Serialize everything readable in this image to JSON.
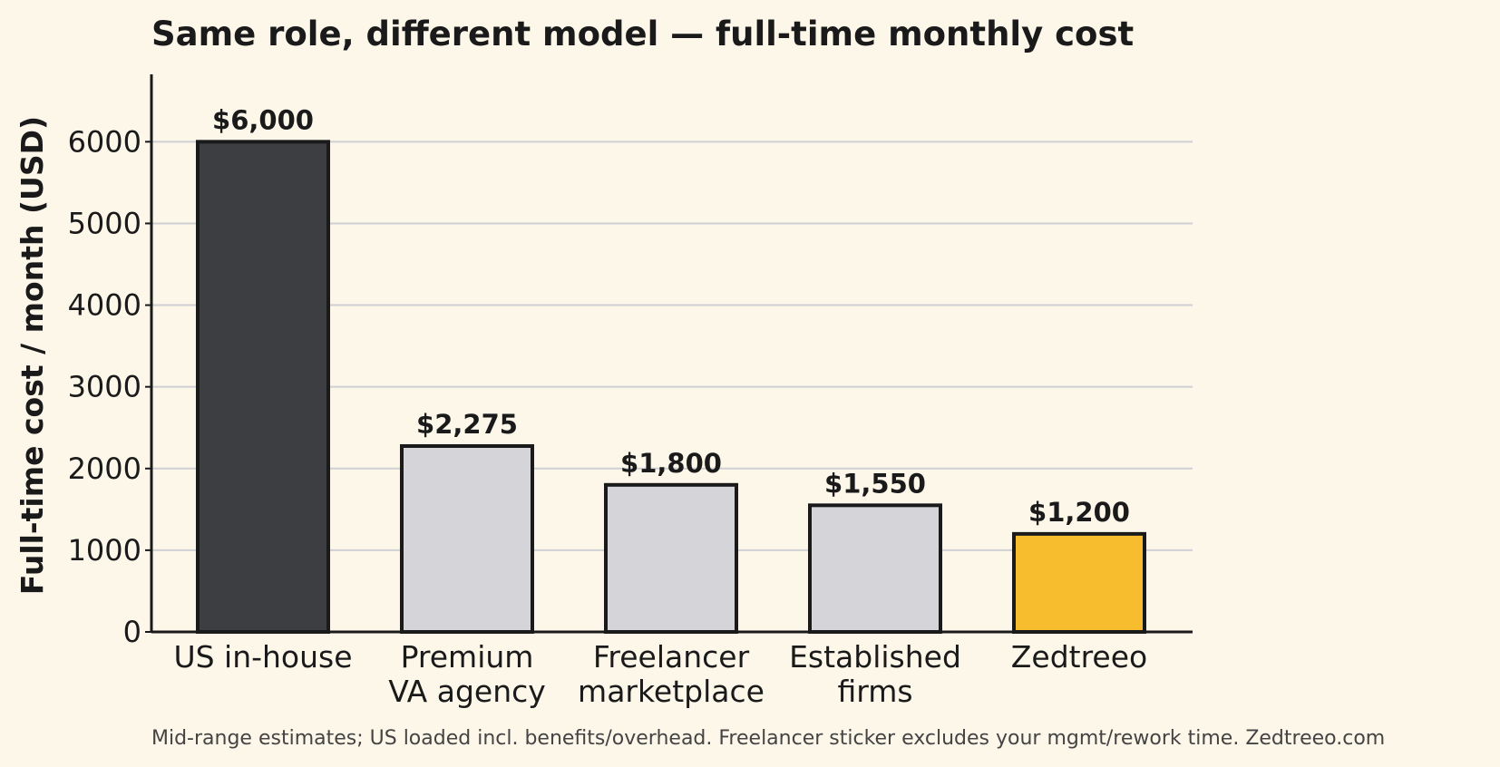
{
  "chart_data": {
    "type": "bar",
    "title": "Same role, different model — full-time monthly cost",
    "y_label": "Full-time cost / month (USD)",
    "categories": [
      "US in-house",
      "Premium\nVA agency",
      "Freelancer\nmarketplace",
      "Established\nfirms",
      "Zedtreeo"
    ],
    "values": [
      6000,
      2275,
      1800,
      1550,
      1200
    ],
    "value_labels": [
      "$6,000",
      "$2,275",
      "$1,800",
      "$1,550",
      "$1,200"
    ],
    "colors": [
      "#3d3e42",
      "#d4d4d9",
      "#d4d4d9",
      "#d4d4d9",
      "#f8bd2e"
    ],
    "ylim": [
      0,
      6825
    ],
    "yticks": [
      0,
      1000,
      2000,
      3000,
      4000,
      5000,
      6000
    ],
    "grid": true,
    "footnote": "Mid-range estimates; US loaded incl. benefits/overhead. Freelancer sticker excludes your mgmt/rework time.  Zedtreeo.com"
  }
}
